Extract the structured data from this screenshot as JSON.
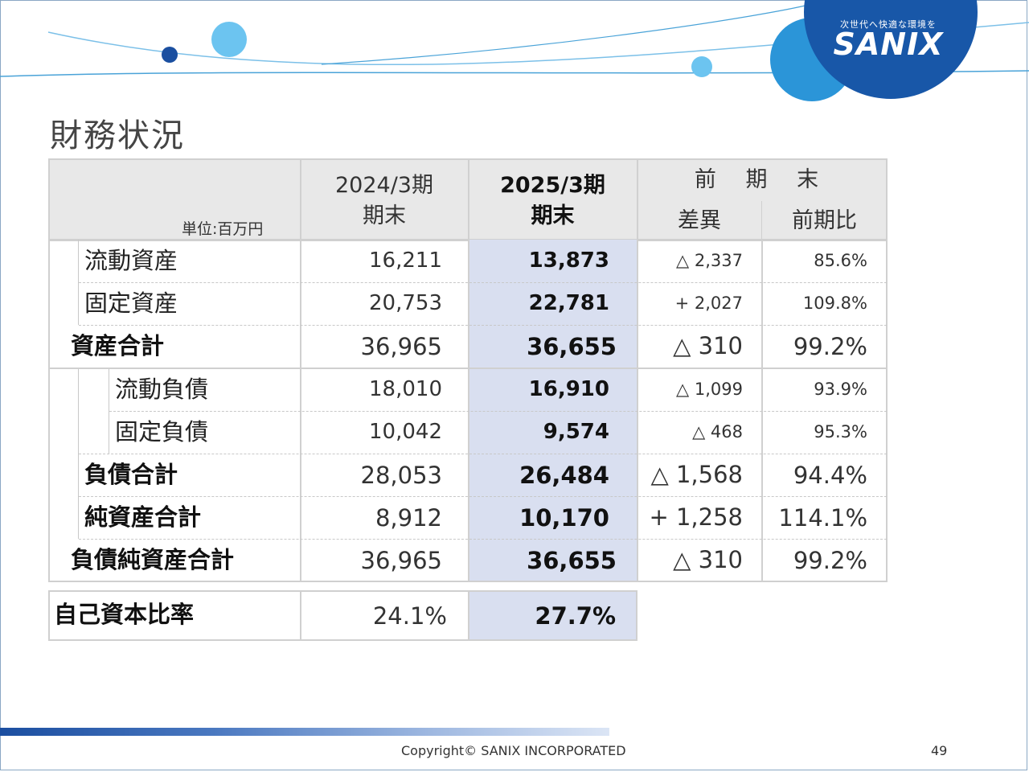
{
  "logo": {
    "tagline": "次世代へ快適な環境を",
    "name": "SANIX"
  },
  "title": "財務状況",
  "table": {
    "headers": {
      "col1_line1": "2024/3期",
      "col1_line2": "期末",
      "col2_line1": "2025/3期",
      "col2_line2": "期末",
      "group": "前 期 末",
      "diff": "差異",
      "ratio": "前期比"
    },
    "unit": "単位:百万円",
    "rows": [
      {
        "label": "流動資産",
        "prev": "16,211",
        "curr": "13,873",
        "diff": "△ 2,337",
        "ratio": "85.6%"
      },
      {
        "label": "固定資産",
        "prev": "20,753",
        "curr": "22,781",
        "diff": "+ 2,027",
        "ratio": "109.8%"
      },
      {
        "label": "資産合計",
        "prev": "36,965",
        "curr": "36,655",
        "diff": "△ 310",
        "ratio": "99.2%"
      },
      {
        "label": "流動負債",
        "prev": "18,010",
        "curr": "16,910",
        "diff": "△ 1,099",
        "ratio": "93.9%"
      },
      {
        "label": "固定負債",
        "prev": "10,042",
        "curr": "9,574",
        "diff": "△ 468",
        "ratio": "95.3%"
      },
      {
        "label": "負債合計",
        "prev": "28,053",
        "curr": "26,484",
        "diff": "△ 1,568",
        "ratio": "94.4%"
      },
      {
        "label": "純資産合計",
        "prev": "8,912",
        "curr": "10,170",
        "diff": "+ 1,258",
        "ratio": "114.1%"
      },
      {
        "label": "負債純資産合計",
        "prev": "36,965",
        "curr": "36,655",
        "diff": "△ 310",
        "ratio": "99.2%"
      }
    ]
  },
  "equity_ratio": {
    "label": "自己資本比率",
    "prev": "24.1%",
    "curr": "27.7%"
  },
  "footer": {
    "copyright": "Copyright© SANIX INCORPORATED",
    "page": "49"
  },
  "colors": {
    "brand_blue": "#1565c0",
    "highlight": "#d9dff0",
    "header_bg": "#e8e8e8"
  }
}
